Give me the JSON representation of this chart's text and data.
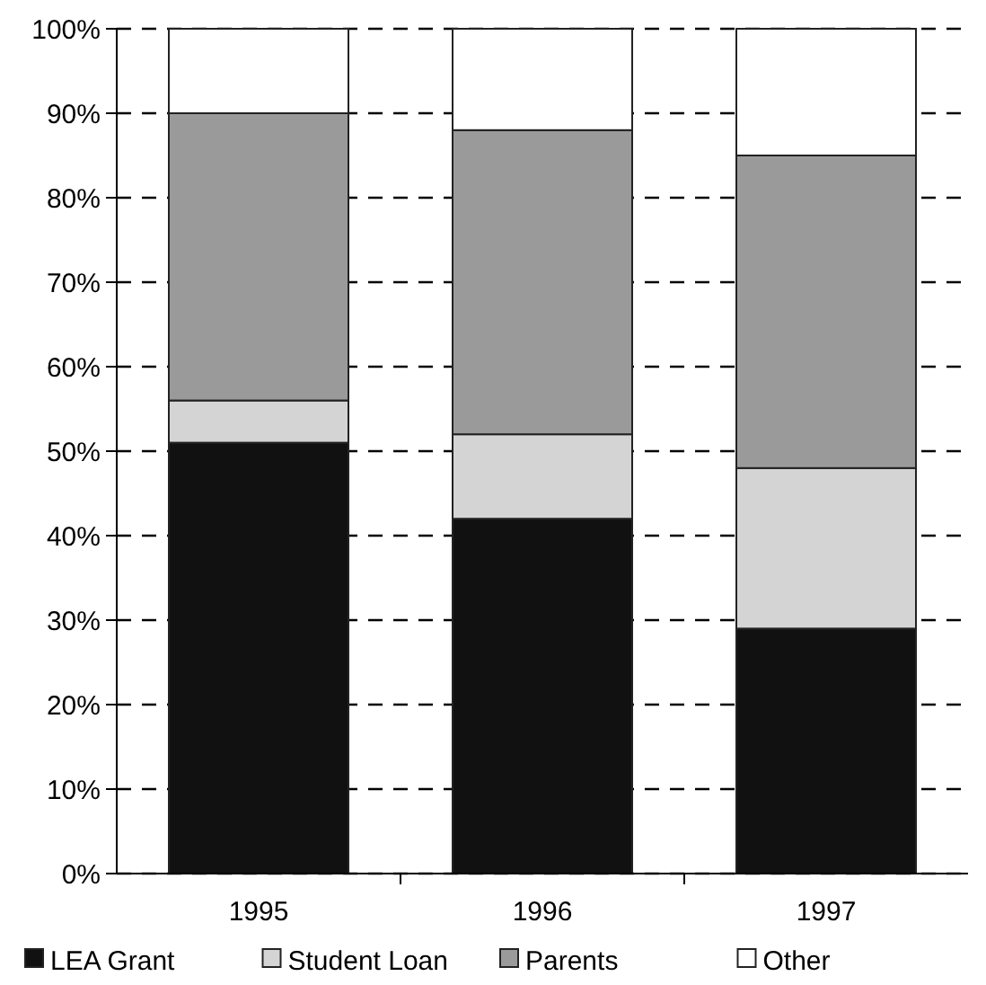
{
  "chart_data": {
    "type": "bar",
    "stacked": true,
    "categories": [
      "1995",
      "1996",
      "1997"
    ],
    "series": [
      {
        "name": "LEA Grant",
        "color": "#111111",
        "values": [
          51,
          42,
          29
        ]
      },
      {
        "name": "Student Loan",
        "color": "#d4d4d4",
        "values": [
          5,
          10,
          19
        ]
      },
      {
        "name": "Parents",
        "color": "#9a9a9a",
        "values": [
          34,
          36,
          37
        ]
      },
      {
        "name": "Other",
        "color": "#ffffff",
        "values": [
          10,
          12,
          15
        ]
      }
    ],
    "ylim": [
      0,
      100
    ],
    "yticks": [
      {
        "value": 0,
        "label": "0%"
      },
      {
        "value": 10,
        "label": "10%"
      },
      {
        "value": 20,
        "label": "20%"
      },
      {
        "value": 30,
        "label": "30%"
      },
      {
        "value": 40,
        "label": "40%"
      },
      {
        "value": 50,
        "label": "50%"
      },
      {
        "value": 60,
        "label": "60%"
      },
      {
        "value": 70,
        "label": "70%"
      },
      {
        "value": 80,
        "label": "80%"
      },
      {
        "value": 90,
        "label": "90%"
      },
      {
        "value": 100,
        "label": "100%"
      }
    ],
    "grid": "y",
    "legend": "bottom"
  }
}
